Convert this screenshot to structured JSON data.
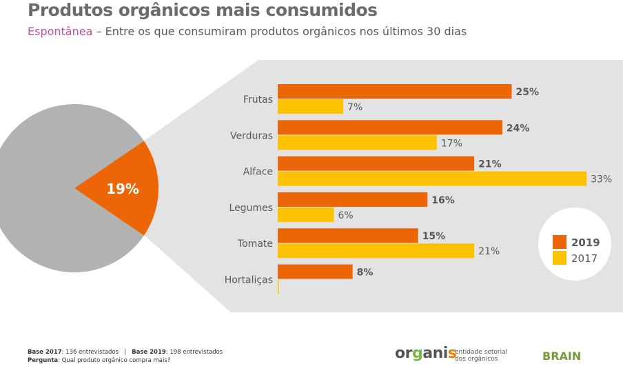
{
  "title": "Produtos orgânicos mais consumidos",
  "subtitle_highlight": "Espontânea",
  "subtitle_rest": " – Entre os que consumiram produtos orgânicos nos últimos 30 dias",
  "footer": {
    "base2017_label": "Base 2017",
    "base2017_value": ": 136 entrevistados",
    "sep": "|",
    "base2019_label": "Base 2019",
    "base2019_value": ": 198 entrevistados",
    "question_label": "Pergunta",
    "question_value": ":  Qual produto orgânico compra mais?"
  },
  "logos": {
    "organis": "organis",
    "organis_sub1": "entidade setorial",
    "organis_sub2": "dos orgânicos",
    "brain": "BRAIN"
  },
  "colors": {
    "c2019": "#ec6608",
    "c2017": "#fcc100",
    "pie_gray": "#b2b2b2",
    "panel": "#e3e3e3"
  },
  "chart_data": [
    {
      "type": "pie",
      "values": [
        19,
        81
      ],
      "labels": [
        "19%",
        ""
      ]
    },
    {
      "type": "bar",
      "orientation": "horizontal",
      "categories": [
        "Frutas",
        "Verduras",
        "Alface",
        "Legumes",
        "Tomate",
        "Hortaliças"
      ],
      "series": [
        {
          "name": "2019",
          "values": [
            25,
            24,
            21,
            16,
            15,
            8
          ]
        },
        {
          "name": "2017",
          "values": [
            7,
            17,
            33,
            6,
            21,
            0
          ]
        }
      ],
      "labels2019": [
        "25%",
        "24%",
        "21%",
        "16%",
        "15%",
        "8%"
      ],
      "labels2017": [
        "7%",
        "17%",
        "33%",
        "6%",
        "21%",
        ""
      ],
      "legend": "bottom-right"
    }
  ]
}
